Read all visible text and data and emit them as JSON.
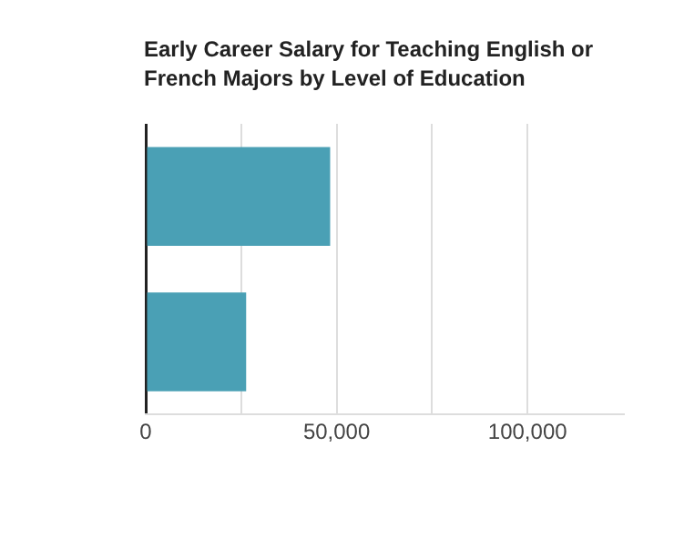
{
  "chart_data": {
    "type": "bar",
    "orientation": "horizontal",
    "title": "Early Career Salary for Teaching English or French Majors by Level of Education",
    "categories": [
      null,
      null
    ],
    "values": [
      48300,
      26300
    ],
    "color": "#4aa0b5",
    "xlim": [
      0,
      125000
    ],
    "xticks": [
      0,
      {
        "value": 25000,
        "label": null
      },
      {
        "value": 50000,
        "label": "50,000"
      },
      {
        "value": 75000,
        "label": null
      },
      {
        "value": 100000,
        "label": "100,000"
      }
    ],
    "grid": "x",
    "legend": false
  }
}
